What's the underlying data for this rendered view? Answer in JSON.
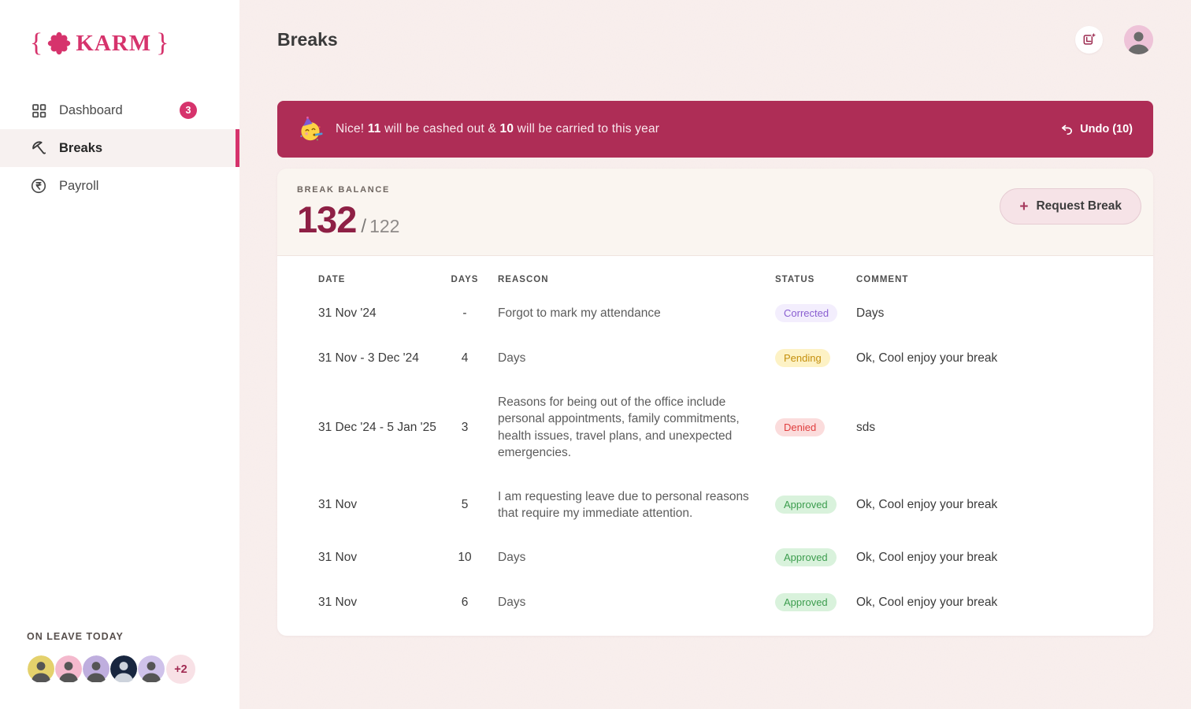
{
  "app": {
    "logo_word": "KARM",
    "brace_left": "{",
    "brace_right": "}"
  },
  "sidebar": {
    "items": [
      {
        "label": "Dashboard",
        "icon": "dashboard-grid-icon",
        "badge": "3",
        "active": false
      },
      {
        "label": "Breaks",
        "icon": "umbrella-icon",
        "active": true
      },
      {
        "label": "Payroll",
        "icon": "rupee-icon",
        "active": false
      }
    ],
    "on_leave": {
      "label": "ON LEAVE TODAY",
      "overflow": "+2"
    }
  },
  "header": {
    "title": "Breaks"
  },
  "banner": {
    "emoji": "party-face",
    "seg1": "Nice! ",
    "cashout": "11",
    "seg2": " will be cashed out & ",
    "carry": "10",
    "seg3": " will be carried to this year",
    "undo_label": "Undo (10)"
  },
  "balance": {
    "label": "BREAK BALANCE",
    "current": "132",
    "divider": "/",
    "total": "122",
    "request_label": "Request Break"
  },
  "table": {
    "columns": [
      "DATE",
      "DAYS",
      "REASCON",
      "STATUS",
      "COMMENT"
    ],
    "rows": [
      {
        "date": "31 Nov '24",
        "days": "-",
        "reason": "Forgot to mark my attendance",
        "status": "Corrected",
        "comment": "Days"
      },
      {
        "date": "31 Nov - 3 Dec '24",
        "days": "4",
        "reason": "Days",
        "status": "Pending",
        "comment": "Ok, Cool enjoy your break"
      },
      {
        "date": "31 Dec '24 - 5 Jan '25",
        "days": "3",
        "reason": "Reasons for being out of the office include personal appointments, family commitments, health issues, travel plans, and unexpected emergencies.",
        "status": "Denied",
        "comment": "sds"
      },
      {
        "date": "31 Nov",
        "days": "5",
        "reason": "I am requesting leave due to personal reasons that require my immediate attention.",
        "status": "Approved",
        "comment": "Ok, Cool enjoy your break"
      },
      {
        "date": "31 Nov",
        "days": "10",
        "reason": "Days",
        "status": "Approved",
        "comment": "Ok, Cool enjoy your break"
      },
      {
        "date": "31 Nov",
        "days": "6",
        "reason": "Days",
        "status": "Approved",
        "comment": "Ok, Cool enjoy your break"
      }
    ]
  },
  "colors": {
    "accent": "#d6336c",
    "banner_bg": "#ae2d56",
    "balance_number": "#8e2045",
    "status": {
      "Corrected": {
        "bg": "#f3eefd",
        "fg": "#8a5fd1"
      },
      "Pending": {
        "bg": "#fdf2c5",
        "fg": "#c48f0c"
      },
      "Denied": {
        "bg": "#fbdcdc",
        "fg": "#e03e3e"
      },
      "Approved": {
        "bg": "#d9f2dc",
        "fg": "#3c9d4e"
      }
    },
    "avatar_bgs": [
      "#e4d16c",
      "#f4b9cd",
      "#bfaede",
      "#18263f",
      "#cfc2ea"
    ]
  }
}
